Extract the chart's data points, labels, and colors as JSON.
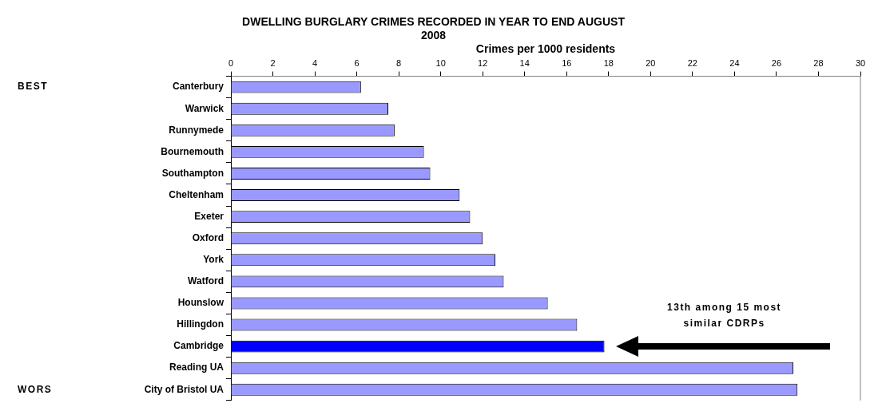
{
  "chart_data": {
    "type": "bar",
    "orientation": "horizontal",
    "title": "DWELLING BURGLARY CRIMES RECORDED IN YEAR TO END AUGUST 2008",
    "xlabel": "Crimes per 1000 residents",
    "categories": [
      "Canterbury",
      "Warwick",
      "Runnymede",
      "Bournemouth",
      "Southampton",
      "Cheltenham",
      "Exeter",
      "Oxford",
      "York",
      "Watford",
      "Hounslow",
      "Hillingdon",
      "Cambridge",
      "Reading UA",
      "City of Bristol UA"
    ],
    "values": [
      6.2,
      7.5,
      7.8,
      9.2,
      9.5,
      10.9,
      11.4,
      12.0,
      12.6,
      13.0,
      15.1,
      16.5,
      17.8,
      26.8,
      27.0
    ],
    "colors": [
      "#9999ff",
      "#9999ff",
      "#9999ff",
      "#9999ff",
      "#9999ff",
      "#9999ff",
      "#9999ff",
      "#9999ff",
      "#9999ff",
      "#9999ff",
      "#9999ff",
      "#9999ff",
      "#0000ff",
      "#9999ff",
      "#9999ff"
    ],
    "xlim": [
      0,
      30
    ],
    "xticks": [
      0,
      2,
      4,
      6,
      8,
      10,
      12,
      14,
      16,
      18,
      20,
      22,
      24,
      26,
      28,
      30
    ],
    "annotations": [
      "BEST",
      "WORS",
      "13th among 15 most similar CDRPs"
    ]
  }
}
